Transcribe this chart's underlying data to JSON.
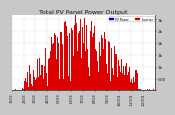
{
  "title": "Total PV Panel Power Output",
  "bg_color": "#c8c8c8",
  "plot_bg": "#ffffff",
  "bar_color": "#dd0000",
  "grid_color": "#aaaaaa",
  "ymax": 3200,
  "num_bars": 365,
  "title_fontsize": 4.5,
  "tick_fontsize": 3.2,
  "legend1_color": "#0000cc",
  "legend2_color": "#cc0000",
  "legend1_label": "PV Power",
  "legend2_label": "Inverter"
}
